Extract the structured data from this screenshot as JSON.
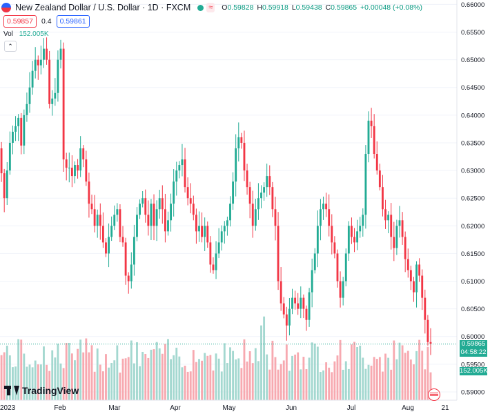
{
  "legend": {
    "title": "New Zealand Dollar / U.S. Dollar · 1D · FXCM",
    "status_icon": "live-dot-icon",
    "visibility_icon": "eye-icon",
    "visibility_glyph": "≈",
    "o_label": "O",
    "o_value": "0.59828",
    "h_label": "H",
    "h_value": "0.59918",
    "l_label": "L",
    "l_value": "0.59438",
    "c_label": "C",
    "c_value": "0.59865",
    "change": "+0.00048 (+0.08%)"
  },
  "quote": {
    "bid": "0.59857",
    "spread": "0.4",
    "ask": "0.59861"
  },
  "volume": {
    "label": "Vol",
    "value": "152.005K"
  },
  "collapse_glyph": "⌃",
  "price_tag": {
    "price": "0.59865",
    "countdown": "04:58:22",
    "volume": "152.005K"
  },
  "logo_text": "TradingView",
  "colors": {
    "up": "#22ab94",
    "down": "#f23645",
    "up_vol": "#a4d8d0",
    "down_vol": "#f7a9b0",
    "axis_text": "#131722",
    "grid": "#f0f3fa"
  },
  "chart_data": {
    "type": "candlestick",
    "symbol": "NZDUSD",
    "exchange": "FXCM",
    "interval": "1D",
    "y_ticks": [
      "0.66000",
      "0.65500",
      "0.65000",
      "0.64500",
      "0.64000",
      "0.63500",
      "0.63000",
      "0.62500",
      "0.62000",
      "0.61500",
      "0.61000",
      "0.60500",
      "0.60000",
      "0.59500",
      "0.59000"
    ],
    "ylim": [
      0.5885,
      0.6608
    ],
    "x_ticks": [
      "2023",
      "Feb",
      "Mar",
      "Apr",
      "May",
      "Jun",
      "Jul",
      "Aug",
      "21"
    ],
    "last_price": 0.59865,
    "closes": [
      0.634,
      0.6295,
      0.625,
      0.63,
      0.635,
      0.637,
      0.638,
      0.6395,
      0.6345,
      0.64,
      0.642,
      0.645,
      0.648,
      0.65,
      0.649,
      0.65,
      0.652,
      0.65,
      0.642,
      0.643,
      0.644,
      0.65,
      0.652,
      0.632,
      0.6305,
      0.6305,
      0.629,
      0.631,
      0.63,
      0.634,
      0.632,
      0.628,
      0.624,
      0.623,
      0.62,
      0.622,
      0.62,
      0.617,
      0.615,
      0.618,
      0.62,
      0.622,
      0.623,
      0.618,
      0.617,
      0.611,
      0.61,
      0.613,
      0.618,
      0.622,
      0.624,
      0.625,
      0.622,
      0.62,
      0.624,
      0.62,
      0.623,
      0.625,
      0.623,
      0.619,
      0.621,
      0.624,
      0.628,
      0.63,
      0.631,
      0.632,
      0.627,
      0.625,
      0.624,
      0.622,
      0.619,
      0.62,
      0.618,
      0.62,
      0.617,
      0.613,
      0.612,
      0.615,
      0.617,
      0.619,
      0.62,
      0.621,
      0.624,
      0.628,
      0.634,
      0.636,
      0.635,
      0.63,
      0.627,
      0.624,
      0.62,
      0.623,
      0.625,
      0.626,
      0.627,
      0.629,
      0.627,
      0.623,
      0.62,
      0.61,
      0.606,
      0.604,
      0.602,
      0.605,
      0.607,
      0.606,
      0.605,
      0.607,
      0.605,
      0.603,
      0.608,
      0.612,
      0.615,
      0.62,
      0.623,
      0.624,
      0.623,
      0.62,
      0.617,
      0.615,
      0.61,
      0.607,
      0.61,
      0.615,
      0.62,
      0.618,
      0.617,
      0.619,
      0.62,
      0.622,
      0.633,
      0.639,
      0.638,
      0.633,
      0.63,
      0.627,
      0.623,
      0.621,
      0.622,
      0.618,
      0.616,
      0.62,
      0.621,
      0.618,
      0.614,
      0.612,
      0.61,
      0.608,
      0.613,
      0.611,
      0.607,
      0.603,
      0.599,
      0.5987
    ],
    "candles_note": "open = previous close; high/low extend beyond body",
    "volume_series": "bars per candle, colored by candle direction"
  }
}
